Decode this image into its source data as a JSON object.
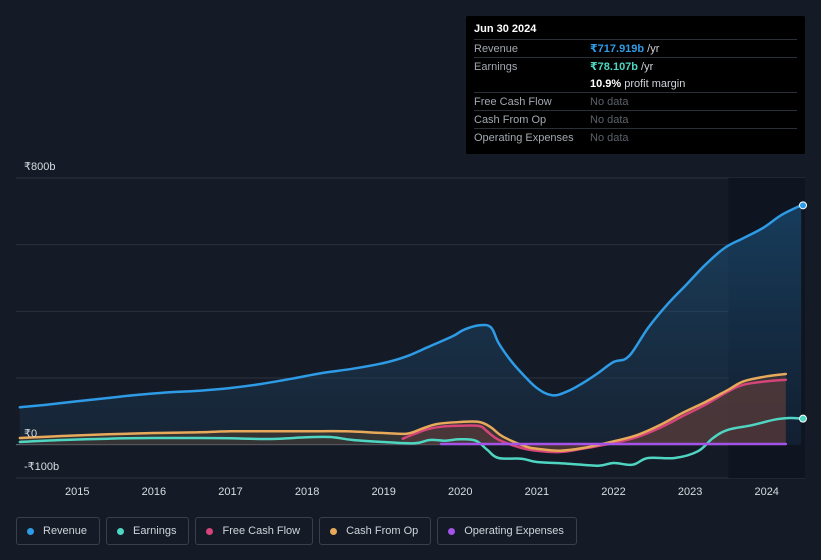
{
  "chart_data": {
    "type": "area",
    "y_axis_labels": [
      "₹800b",
      "₹0",
      "-₹100b"
    ],
    "ylim": [
      -100,
      800
    ],
    "xlim": [
      2014.2,
      2024.5
    ],
    "x_ticks": [
      {
        "value": 2015,
        "label": "2015"
      },
      {
        "value": 2016,
        "label": "2016"
      },
      {
        "value": 2017,
        "label": "2017"
      },
      {
        "value": 2018,
        "label": "2018"
      },
      {
        "value": 2019,
        "label": "2019"
      },
      {
        "value": 2020,
        "label": "2020"
      },
      {
        "value": 2021,
        "label": "2021"
      },
      {
        "value": 2022,
        "label": "2022"
      },
      {
        "value": 2023,
        "label": "2023"
      },
      {
        "value": 2024,
        "label": "2024"
      }
    ],
    "gridlines": [
      800,
      600,
      400,
      200,
      0,
      -100
    ],
    "highlight_from": 2023.5,
    "series": [
      {
        "name": "Revenue",
        "key": "revenue",
        "color": "#2e9be6",
        "fill": true,
        "points": [
          [
            2014.25,
            112
          ],
          [
            2014.6,
            120
          ],
          [
            2015.0,
            130
          ],
          [
            2015.4,
            140
          ],
          [
            2015.8,
            150
          ],
          [
            2016.2,
            157
          ],
          [
            2016.6,
            162
          ],
          [
            2017.0,
            170
          ],
          [
            2017.4,
            182
          ],
          [
            2017.8,
            198
          ],
          [
            2018.2,
            215
          ],
          [
            2018.6,
            228
          ],
          [
            2019.0,
            245
          ],
          [
            2019.3,
            265
          ],
          [
            2019.6,
            295
          ],
          [
            2019.9,
            325
          ],
          [
            2020.05,
            345
          ],
          [
            2020.25,
            358
          ],
          [
            2020.4,
            352
          ],
          [
            2020.5,
            305
          ],
          [
            2020.65,
            255
          ],
          [
            2020.8,
            215
          ],
          [
            2021.0,
            170
          ],
          [
            2021.2,
            148
          ],
          [
            2021.4,
            160
          ],
          [
            2021.6,
            185
          ],
          [
            2021.8,
            215
          ],
          [
            2022.0,
            248
          ],
          [
            2022.2,
            265
          ],
          [
            2022.45,
            350
          ],
          [
            2022.7,
            420
          ],
          [
            2022.95,
            480
          ],
          [
            2023.2,
            540
          ],
          [
            2023.45,
            590
          ],
          [
            2023.7,
            620
          ],
          [
            2023.95,
            650
          ],
          [
            2024.2,
            690
          ],
          [
            2024.45,
            718
          ]
        ]
      },
      {
        "name": "Earnings",
        "key": "earnings",
        "color": "#4ed6c2",
        "fill": false,
        "points": [
          [
            2014.25,
            8
          ],
          [
            2014.8,
            14
          ],
          [
            2015.4,
            18
          ],
          [
            2016.0,
            20
          ],
          [
            2016.6,
            20
          ],
          [
            2017.0,
            19
          ],
          [
            2017.5,
            17
          ],
          [
            2018.0,
            22
          ],
          [
            2018.3,
            23
          ],
          [
            2018.6,
            14
          ],
          [
            2019.0,
            8
          ],
          [
            2019.4,
            4
          ],
          [
            2019.6,
            14
          ],
          [
            2019.8,
            12
          ],
          [
            2020.0,
            16
          ],
          [
            2020.2,
            12
          ],
          [
            2020.35,
            -15
          ],
          [
            2020.5,
            -40
          ],
          [
            2020.8,
            -42
          ],
          [
            2021.0,
            -52
          ],
          [
            2021.4,
            -57
          ],
          [
            2021.8,
            -63
          ],
          [
            2022.0,
            -55
          ],
          [
            2022.25,
            -60
          ],
          [
            2022.45,
            -40
          ],
          [
            2022.8,
            -40
          ],
          [
            2023.1,
            -20
          ],
          [
            2023.3,
            20
          ],
          [
            2023.5,
            45
          ],
          [
            2023.8,
            58
          ],
          [
            2024.1,
            75
          ],
          [
            2024.3,
            80
          ],
          [
            2024.45,
            78
          ]
        ]
      },
      {
        "name": "Free Cash Flow",
        "key": "fcf",
        "color": "#d6457a",
        "fill": true,
        "points": [
          [
            2019.25,
            18
          ],
          [
            2019.4,
            32
          ],
          [
            2019.6,
            48
          ],
          [
            2019.8,
            55
          ],
          [
            2020.0,
            57
          ],
          [
            2020.25,
            56
          ],
          [
            2020.35,
            40
          ],
          [
            2020.5,
            15
          ],
          [
            2020.8,
            -10
          ],
          [
            2021.0,
            -18
          ],
          [
            2021.3,
            -22
          ],
          [
            2021.6,
            -12
          ],
          [
            2022.0,
            5
          ],
          [
            2022.3,
            22
          ],
          [
            2022.6,
            50
          ],
          [
            2022.9,
            85
          ],
          [
            2023.2,
            120
          ],
          [
            2023.5,
            160
          ],
          [
            2023.7,
            180
          ],
          [
            2024.0,
            190
          ],
          [
            2024.25,
            195
          ]
        ]
      },
      {
        "name": "Cash From Op",
        "key": "cfo",
        "color": "#e8a95b",
        "fill": true,
        "points": [
          [
            2014.25,
            20
          ],
          [
            2014.8,
            26
          ],
          [
            2015.4,
            31
          ],
          [
            2016.0,
            35
          ],
          [
            2016.6,
            37
          ],
          [
            2017.0,
            40
          ],
          [
            2017.5,
            40
          ],
          [
            2018.0,
            40
          ],
          [
            2018.5,
            40
          ],
          [
            2019.0,
            35
          ],
          [
            2019.3,
            33
          ],
          [
            2019.5,
            48
          ],
          [
            2019.7,
            62
          ],
          [
            2020.0,
            68
          ],
          [
            2020.25,
            68
          ],
          [
            2020.4,
            52
          ],
          [
            2020.55,
            25
          ],
          [
            2020.85,
            -5
          ],
          [
            2021.0,
            -12
          ],
          [
            2021.3,
            -18
          ],
          [
            2021.6,
            -10
          ],
          [
            2022.0,
            10
          ],
          [
            2022.3,
            28
          ],
          [
            2022.6,
            58
          ],
          [
            2022.9,
            95
          ],
          [
            2023.2,
            128
          ],
          [
            2023.5,
            165
          ],
          [
            2023.7,
            190
          ],
          [
            2024.0,
            205
          ],
          [
            2024.25,
            212
          ]
        ]
      },
      {
        "name": "Operating Expenses",
        "key": "opex",
        "color": "#a353e8",
        "fill": false,
        "points": [
          [
            2019.75,
            2
          ],
          [
            2020.5,
            2
          ],
          [
            2021.5,
            2
          ],
          [
            2022.5,
            2
          ],
          [
            2023.5,
            2
          ],
          [
            2024.25,
            2
          ]
        ]
      }
    ],
    "end_markers": [
      {
        "series": "revenue",
        "x": 2024.5,
        "y": 718
      },
      {
        "series": "earnings",
        "x": 2024.5,
        "y": 78
      }
    ],
    "legend": [
      "Revenue",
      "Earnings",
      "Free Cash Flow",
      "Cash From Op",
      "Operating Expenses"
    ],
    "legend_placement": "bottom-left"
  },
  "tooltip": {
    "date": "Jun 30 2024",
    "revenue_label": "Revenue",
    "revenue_value": "₹717.919b",
    "revenue_unit": "/yr",
    "earnings_label": "Earnings",
    "earnings_value": "₹78.107b",
    "earnings_unit": "/yr",
    "margin_value": "10.9%",
    "margin_label": "profit margin",
    "fcf_label": "Free Cash Flow",
    "fcf_value": "No data",
    "cfo_label": "Cash From Op",
    "cfo_value": "No data",
    "opex_label": "Operating Expenses",
    "opex_value": "No data"
  },
  "colors": {
    "background": "#151b26",
    "revenue": "#2e9be6",
    "earnings": "#4ed6c2",
    "fcf": "#d6457a",
    "cfo": "#e8a95b",
    "opex": "#a353e8"
  }
}
